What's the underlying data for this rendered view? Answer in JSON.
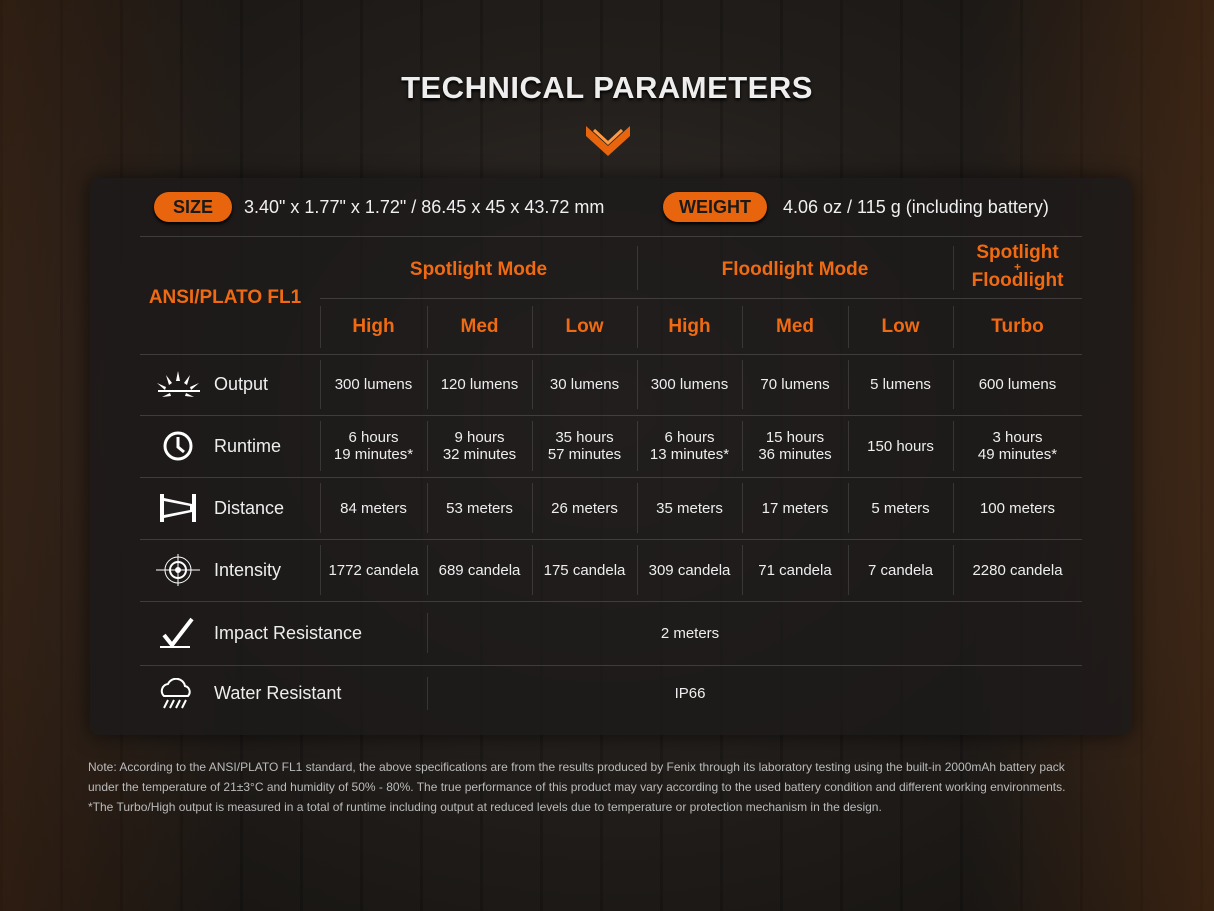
{
  "title": "TECHNICAL PARAMETERS",
  "accent": "#e8650d",
  "size": {
    "label": "SIZE",
    "value": "3.40\" x 1.77\" x 1.72\" / 86.45 x 45 x 43.72 mm"
  },
  "weight": {
    "label": "WEIGHT",
    "value": "4.06 oz / 115 g (including battery)"
  },
  "table": {
    "corner": "ANSI/PLATO FL1",
    "groups": [
      "Spotlight Mode",
      "Floodlight Mode"
    ],
    "combo": {
      "line1": "Spotlight",
      "plus": "+",
      "line2": "Floodlight"
    },
    "levels": [
      "High",
      "Med",
      "Low",
      "High",
      "Med",
      "Low",
      "Turbo"
    ],
    "rows": [
      {
        "label": "Output",
        "icon": "sunburst-icon",
        "values": [
          "300 lumens",
          "120 lumens",
          "30 lumens",
          "300 lumens",
          "70 lumens",
          "5 lumens",
          "600 lumens"
        ]
      },
      {
        "label": "Runtime",
        "icon": "clock-icon",
        "values": [
          "6 hours\n19 minutes*",
          "9 hours\n32 minutes",
          "35 hours\n57 minutes",
          "6 hours\n13 minutes*",
          "15 hours\n36 minutes",
          "150 hours",
          "3 hours\n49 minutes*"
        ]
      },
      {
        "label": "Distance",
        "icon": "beam-distance-icon",
        "values": [
          "84 meters",
          "53 meters",
          "26 meters",
          "35 meters",
          "17 meters",
          "5 meters",
          "100 meters"
        ]
      },
      {
        "label": "Intensity",
        "icon": "target-icon",
        "values": [
          "1772 candela",
          "689 candela",
          "175 candela",
          "309 candela",
          "71 candela",
          "7 candela",
          "2280 candela"
        ]
      },
      {
        "label": "Impact Resistance",
        "icon": "impact-check-icon",
        "value": "2 meters"
      },
      {
        "label": "Water Resistant",
        "icon": "rain-cloud-icon",
        "value": "IP66"
      }
    ]
  },
  "note": [
    "Note: According to the ANSI/PLATO FL1 standard, the above specifications are from the results produced by Fenix through its laboratory testing using the built-in 2000mAh battery pack",
    "under the temperature of 21±3°C and humidity of 50% - 80%. The true performance of this product may vary according to the used battery condition and different working environments.",
    "*The Turbo/High output is measured in a total of runtime including output at reduced levels due to temperature or protection mechanism in the design."
  ]
}
